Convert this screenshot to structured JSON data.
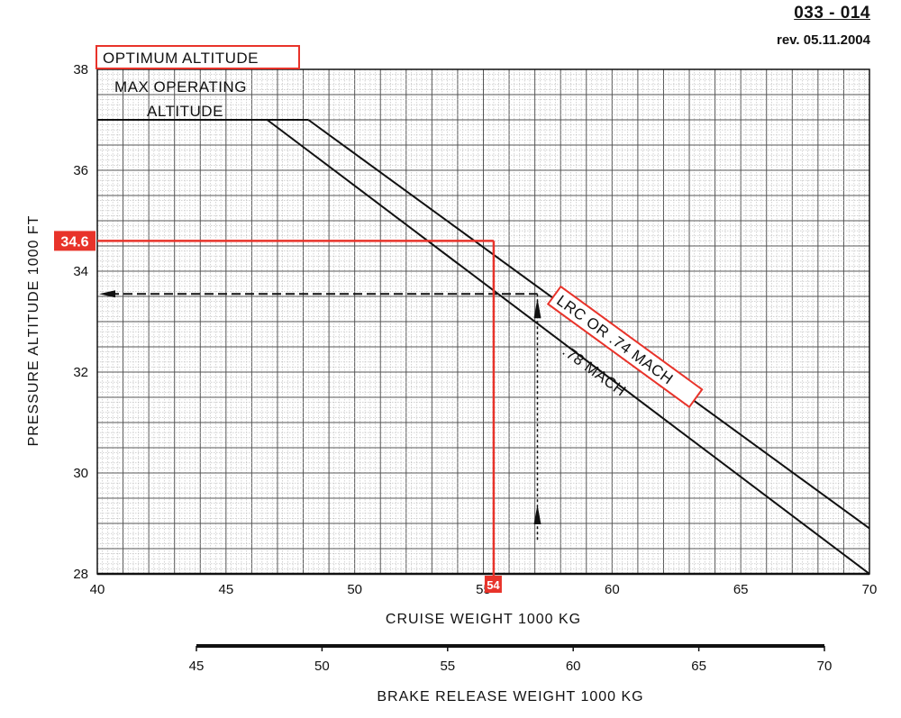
{
  "header": {
    "code": "033 - 014",
    "revision": "rev. 05.11.2004"
  },
  "chart_data": {
    "type": "line",
    "title": "OPTIMUM ALTITUDE",
    "xlabel": "CRUISE WEIGHT   1000 KG",
    "ylabel": "PRESSURE ALTITUDE   1000 FT",
    "secondary_xlabel": "BRAKE RELEASE WEIGHT   1000 KG",
    "xlim": [
      40,
      70
    ],
    "ylim": [
      28,
      38
    ],
    "x_ticks": [
      40,
      45,
      50,
      55,
      60,
      65,
      70
    ],
    "y_ticks": [
      28,
      30,
      32,
      34,
      36,
      38
    ],
    "secondary_x_ticks": [
      45,
      50,
      55,
      60,
      65,
      70
    ],
    "secondary_xlim": [
      45,
      70
    ],
    "grid": true,
    "series": [
      {
        "name": "LRC OR .74 MACH",
        "x": [
          48.2,
          70
        ],
        "y": [
          37.0,
          28.9
        ]
      },
      {
        "name": ".78 MACH",
        "x": [
          46.6,
          70
        ],
        "y": [
          37.0,
          28.0
        ]
      }
    ],
    "max_operating_altitude": {
      "label": "MAX OPERATING ALTITUDE",
      "label_lines": [
        "MAX OPERATING",
        "ALTITUDE"
      ],
      "y": 37.0
    },
    "annotations": {
      "series_label_boxed": "LRC OR .74 MACH",
      "series_label_plain": ".78 MACH",
      "highlight_altitude": "34.6",
      "highlight_weight": "54",
      "highlight_point": {
        "x": 55.4,
        "y": 34.6
      },
      "example_dashed_altitude": 33.55,
      "example_weight": 57.1
    },
    "colors": {
      "highlight": "#e8332a",
      "ink": "#111111",
      "grid_major": "#555555",
      "grid_minor": "#b8b8b8"
    }
  }
}
